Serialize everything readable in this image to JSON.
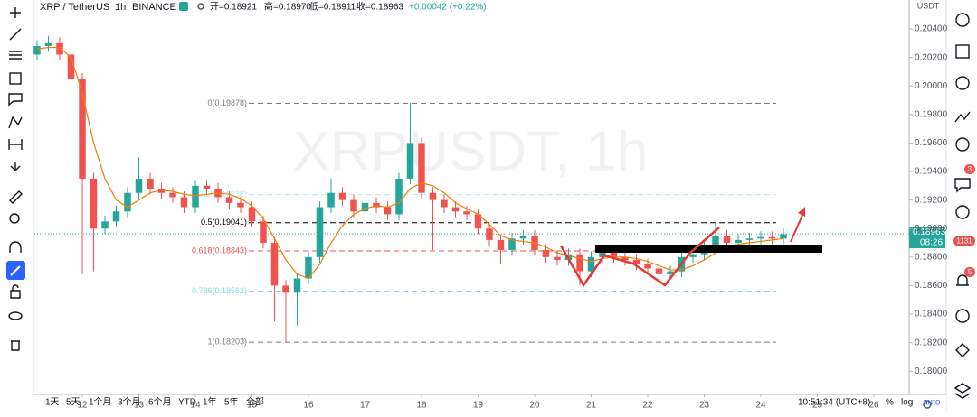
{
  "header": {
    "symbol": "XRP / TetherUS",
    "interval": "1h",
    "exchange": "BINANCE",
    "ohlc": [
      "开=0.18921",
      "高=0.18970",
      "低=0.18911",
      "收=0.18963",
      "+0.00042 (+0.22%)"
    ]
  },
  "chart_data": {
    "type": "candlestick",
    "watermark": "XRPUSDT, 1h",
    "currency": "USDT",
    "up_color": "#26a69a",
    "down_color": "#ef5350",
    "x": [
      11.2,
      11.4,
      11.6,
      11.8,
      12,
      12.2,
      12.4,
      12.6,
      12.8,
      13,
      13.2,
      13.4,
      13.6,
      13.8,
      14,
      14.2,
      14.4,
      14.6,
      14.8,
      15,
      15.2,
      15.4,
      15.6,
      15.8,
      16,
      16.2,
      16.4,
      16.6,
      16.8,
      17,
      17.2,
      17.4,
      17.6,
      17.8,
      18,
      18.2,
      18.4,
      18.6,
      18.8,
      19,
      19.2,
      19.4,
      19.6,
      19.8,
      20,
      20.2,
      20.4,
      20.6,
      20.8,
      21,
      21.2,
      21.4,
      21.6,
      21.8,
      22,
      22.2,
      22.4,
      22.6,
      22.8,
      23,
      23.2,
      23.4,
      23.6,
      23.8,
      24,
      24.2,
      24.4
    ],
    "open": [
      0.2022,
      0.2028,
      0.203,
      0.2022,
      0.2005,
      0.1935,
      0.19,
      0.1905,
      0.1912,
      0.1925,
      0.1935,
      0.1928,
      0.1925,
      0.1922,
      0.1915,
      0.193,
      0.1928,
      0.1922,
      0.1918,
      0.1915,
      0.1905,
      0.189,
      0.186,
      0.1855,
      0.1865,
      0.188,
      0.1915,
      0.1925,
      0.192,
      0.1912,
      0.1918,
      0.1915,
      0.191,
      0.1935,
      0.196,
      0.1925,
      0.192,
      0.1915,
      0.1912,
      0.191,
      0.19,
      0.1892,
      0.1885,
      0.1893,
      0.1895,
      0.1885,
      0.188,
      0.1878,
      0.1882,
      0.187,
      0.188,
      0.1885,
      0.188,
      0.1878,
      0.1875,
      0.1872,
      0.1868,
      0.187,
      0.188,
      0.1882,
      0.1888,
      0.1895,
      0.189,
      0.1892,
      0.1893,
      0.1894,
      0.1893
    ],
    "high": [
      0.2032,
      0.2035,
      0.2034,
      0.2026,
      0.2009,
      0.1939,
      0.1909,
      0.1916,
      0.1929,
      0.195,
      0.1939,
      0.1932,
      0.1929,
      0.1926,
      0.1934,
      0.1934,
      0.1932,
      0.1926,
      0.1922,
      0.1919,
      0.1909,
      0.1894,
      0.1864,
      0.1869,
      0.1884,
      0.1919,
      0.1935,
      0.1929,
      0.1924,
      0.1922,
      0.1922,
      0.1919,
      0.1939,
      0.1988,
      0.1964,
      0.1929,
      0.1924,
      0.1919,
      0.1916,
      0.1914,
      0.1904,
      0.1896,
      0.1897,
      0.1899,
      0.1899,
      0.1889,
      0.1884,
      0.1886,
      0.1886,
      0.1884,
      0.1889,
      0.1889,
      0.1884,
      0.1882,
      0.1879,
      0.1876,
      0.1874,
      0.1884,
      0.1886,
      0.1892,
      0.1904,
      0.1899,
      0.1896,
      0.1897,
      0.1898,
      0.1898,
      0.19
    ],
    "low": [
      0.2018,
      0.2024,
      0.2018,
      0.2001,
      0.1868,
      0.187,
      0.1896,
      0.1901,
      0.1908,
      0.1921,
      0.1924,
      0.1921,
      0.1918,
      0.1911,
      0.1911,
      0.1924,
      0.1918,
      0.1914,
      0.1911,
      0.1901,
      0.1886,
      0.1835,
      0.182,
      0.1832,
      0.1861,
      0.1876,
      0.1911,
      0.1916,
      0.1908,
      0.1908,
      0.1911,
      0.1906,
      0.1906,
      0.1931,
      0.1921,
      0.1885,
      0.1911,
      0.1908,
      0.1906,
      0.1896,
      0.1888,
      0.1875,
      0.1881,
      0.1889,
      0.1881,
      0.1876,
      0.1874,
      0.1874,
      0.186,
      0.1866,
      0.1876,
      0.1876,
      0.1874,
      0.1871,
      0.1868,
      0.186,
      0.1864,
      0.1866,
      0.1876,
      0.1878,
      0.1884,
      0.1886,
      0.1886,
      0.1888,
      0.1889,
      0.1889,
      0.1889
    ],
    "close": [
      0.2028,
      0.203,
      0.2022,
      0.2005,
      0.1935,
      0.19,
      0.1905,
      0.1912,
      0.1925,
      0.1935,
      0.1928,
      0.1925,
      0.1922,
      0.1915,
      0.193,
      0.1928,
      0.1922,
      0.1918,
      0.1915,
      0.1905,
      0.189,
      0.186,
      0.1855,
      0.1865,
      0.188,
      0.1915,
      0.1925,
      0.192,
      0.1912,
      0.1918,
      0.1915,
      0.191,
      0.1935,
      0.196,
      0.1925,
      0.192,
      0.1915,
      0.1912,
      0.191,
      0.19,
      0.1892,
      0.1885,
      0.1893,
      0.1895,
      0.1885,
      0.188,
      0.1878,
      0.1882,
      0.187,
      0.188,
      0.1885,
      0.188,
      0.1878,
      0.1875,
      0.1872,
      0.1868,
      0.187,
      0.188,
      0.1882,
      0.1888,
      0.1895,
      0.189,
      0.1892,
      0.1893,
      0.1894,
      0.1893,
      0.1896
    ],
    "ma": {
      "color": "#f57c00",
      "values": [
        0.2026,
        0.2027,
        0.2027,
        0.202,
        0.1995,
        0.196,
        0.1935,
        0.192,
        0.1915,
        0.192,
        0.1925,
        0.1927,
        0.1926,
        0.1924,
        0.1923,
        0.1924,
        0.1925,
        0.1924,
        0.1921,
        0.1916,
        0.1907,
        0.1893,
        0.1878,
        0.1868,
        0.1865,
        0.1875,
        0.189,
        0.1902,
        0.191,
        0.1914,
        0.1916,
        0.1915,
        0.1918,
        0.1928,
        0.1932,
        0.193,
        0.1925,
        0.1918,
        0.1914,
        0.191,
        0.1903,
        0.1895,
        0.1892,
        0.1891,
        0.189,
        0.1887,
        0.1883,
        0.1881,
        0.1879,
        0.1877,
        0.1879,
        0.188,
        0.188,
        0.1879,
        0.1877,
        0.1874,
        0.1871,
        0.1871,
        0.1874,
        0.1878,
        0.1883,
        0.1887,
        0.1889,
        0.189,
        0.1891,
        0.1892,
        0.1893
      ]
    },
    "xlim": [
      11.152,
      26.624
    ],
    "xticks": [
      12,
      13,
      14,
      15,
      16,
      17,
      18,
      19,
      20,
      21,
      22,
      23,
      24,
      25,
      26
    ],
    "ylim": [
      0.17837,
      0.20495
    ],
    "yticks": [
      {
        "value": 0.18,
        "label": "0.18000"
      },
      {
        "value": 0.182,
        "label": "0.18200"
      },
      {
        "value": 0.184,
        "label": "0.18400"
      },
      {
        "value": 0.186,
        "label": "0.18600"
      },
      {
        "value": 0.188,
        "label": "0.18800"
      },
      {
        "value": 0.19,
        "label": "0.19000"
      },
      {
        "value": 0.192,
        "label": "0.19200"
      },
      {
        "value": 0.194,
        "label": "0.19400"
      },
      {
        "value": 0.196,
        "label": "0.19600"
      },
      {
        "value": 0.198,
        "label": "0.19800"
      },
      {
        "value": 0.2,
        "label": "0.20000"
      },
      {
        "value": 0.202,
        "label": "0.20200"
      },
      {
        "value": 0.204,
        "label": "0.20400"
      }
    ],
    "grid": false,
    "last_price": 0.18963,
    "last_time": "08:26",
    "last_color": "#26a69a",
    "fib_levels": [
      {
        "value": 0.19878,
        "label": "0(0.19878)",
        "color": "#787b86"
      },
      {
        "value": 0.19238,
        "label": "0.382(0.19238)",
        "color": "#b2ebf2"
      },
      {
        "value": 0.19041,
        "label": "0.5(0.19041)",
        "color": "#000000"
      },
      {
        "value": 0.18843,
        "label": "0.618(0.18843)",
        "color": "#ef5350"
      },
      {
        "value": 0.18562,
        "label": "0.786(0.18562)",
        "color": "#80deea"
      },
      {
        "value": 0.18203,
        "label": "1(0.18203)",
        "color": "#787b86"
      }
    ]
  },
  "bottom_bar": {
    "ranges": [
      "1天",
      "5天",
      "1个月",
      "3个月",
      "6个月",
      "YTD",
      "1年",
      "5年",
      "全部"
    ],
    "time": "10:51:34 (UTC+8)",
    "options": [
      "%",
      "log",
      "auto"
    ]
  },
  "sidebar": {
    "badges": [
      "3",
      "1131",
      "5"
    ]
  }
}
